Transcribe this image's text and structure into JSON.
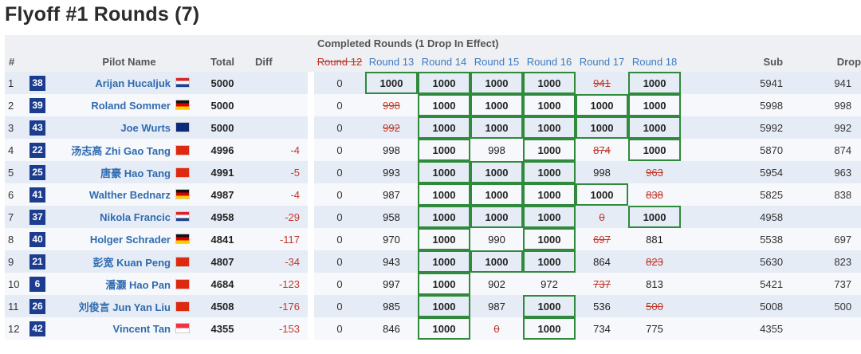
{
  "title": "Flyoff #1 Rounds (7)",
  "header": {
    "group_label": "Completed Rounds (1 Drop In Effect)",
    "hash": "#",
    "pilot_name": "Pilot Name",
    "total": "Total",
    "diff": "Diff",
    "rounds": [
      "Round 12",
      "Round 13",
      "Round 14",
      "Round 15",
      "Round 16",
      "Round 17",
      "Round 18"
    ],
    "sub": "Sub",
    "drop": "Drop"
  },
  "colors": {
    "id_badge": "#1c3d8f",
    "name": "#2f6bb0",
    "negative": "#c0392b",
    "box": "#2f8a3c",
    "round_head": "#3a7cc2"
  },
  "rows": [
    {
      "rank": "1",
      "id": "38",
      "name": "Arijan Hucaljuk",
      "flag": "hr",
      "total": "5000",
      "diff": "",
      "r12": "0",
      "scores": [
        "1000",
        "1000",
        "1000",
        "1000",
        "941",
        "1000"
      ],
      "crossed": [
        false,
        false,
        false,
        false,
        true,
        false
      ],
      "bold": [
        true,
        true,
        true,
        true,
        false,
        true
      ],
      "boxed": [
        true,
        true,
        true,
        true,
        false,
        true
      ],
      "sub": "5941",
      "drop": "941"
    },
    {
      "rank": "2",
      "id": "39",
      "name": "Roland Sommer",
      "flag": "de",
      "total": "5000",
      "diff": "",
      "r12": "0",
      "scores": [
        "998",
        "1000",
        "1000",
        "1000",
        "1000",
        "1000"
      ],
      "crossed": [
        true,
        false,
        false,
        false,
        false,
        false
      ],
      "bold": [
        false,
        true,
        true,
        true,
        true,
        true
      ],
      "boxed": [
        false,
        true,
        true,
        true,
        true,
        true
      ],
      "sub": "5998",
      "drop": "998"
    },
    {
      "rank": "3",
      "id": "43",
      "name": "Joe Wurts",
      "flag": "nz",
      "total": "5000",
      "diff": "",
      "r12": "0",
      "scores": [
        "992",
        "1000",
        "1000",
        "1000",
        "1000",
        "1000"
      ],
      "crossed": [
        true,
        false,
        false,
        false,
        false,
        false
      ],
      "bold": [
        false,
        true,
        true,
        true,
        true,
        true
      ],
      "boxed": [
        false,
        true,
        true,
        true,
        true,
        true
      ],
      "sub": "5992",
      "drop": "992"
    },
    {
      "rank": "4",
      "id": "22",
      "name": "汤志高 Zhi Gao Tang",
      "flag": "cn",
      "total": "4996",
      "diff": "-4",
      "r12": "0",
      "scores": [
        "998",
        "1000",
        "998",
        "1000",
        "874",
        "1000"
      ],
      "crossed": [
        false,
        false,
        false,
        false,
        true,
        false
      ],
      "bold": [
        false,
        true,
        false,
        true,
        false,
        true
      ],
      "boxed": [
        false,
        true,
        false,
        true,
        false,
        true
      ],
      "sub": "5870",
      "drop": "874"
    },
    {
      "rank": "5",
      "id": "25",
      "name": "唐豪 Hao Tang",
      "flag": "cn",
      "total": "4991",
      "diff": "-5",
      "r12": "0",
      "scores": [
        "993",
        "1000",
        "1000",
        "1000",
        "998",
        "963"
      ],
      "crossed": [
        false,
        false,
        false,
        false,
        false,
        true
      ],
      "bold": [
        false,
        true,
        true,
        true,
        false,
        false
      ],
      "boxed": [
        false,
        true,
        true,
        true,
        false,
        false
      ],
      "sub": "5954",
      "drop": "963"
    },
    {
      "rank": "6",
      "id": "41",
      "name": "Walther Bednarz",
      "flag": "de",
      "total": "4987",
      "diff": "-4",
      "r12": "0",
      "scores": [
        "987",
        "1000",
        "1000",
        "1000",
        "1000",
        "838"
      ],
      "crossed": [
        false,
        false,
        false,
        false,
        false,
        true
      ],
      "bold": [
        false,
        true,
        true,
        true,
        true,
        false
      ],
      "boxed": [
        false,
        true,
        true,
        true,
        true,
        false
      ],
      "sub": "5825",
      "drop": "838"
    },
    {
      "rank": "7",
      "id": "37",
      "name": "Nikola Francic",
      "flag": "hr",
      "total": "4958",
      "diff": "-29",
      "r12": "0",
      "scores": [
        "958",
        "1000",
        "1000",
        "1000",
        "0",
        "1000"
      ],
      "crossed": [
        false,
        false,
        false,
        false,
        true,
        false
      ],
      "bold": [
        false,
        true,
        true,
        true,
        false,
        true
      ],
      "boxed": [
        false,
        true,
        true,
        true,
        false,
        true
      ],
      "sub": "4958",
      "drop": ""
    },
    {
      "rank": "8",
      "id": "40",
      "name": "Holger Schrader",
      "flag": "de",
      "total": "4841",
      "diff": "-117",
      "r12": "0",
      "scores": [
        "970",
        "1000",
        "990",
        "1000",
        "697",
        "881"
      ],
      "crossed": [
        false,
        false,
        false,
        false,
        true,
        false
      ],
      "bold": [
        false,
        true,
        false,
        true,
        false,
        false
      ],
      "boxed": [
        false,
        true,
        false,
        true,
        false,
        false
      ],
      "sub": "5538",
      "drop": "697"
    },
    {
      "rank": "9",
      "id": "21",
      "name": "彭宽 Kuan Peng",
      "flag": "cn",
      "total": "4807",
      "diff": "-34",
      "r12": "0",
      "scores": [
        "943",
        "1000",
        "1000",
        "1000",
        "864",
        "823"
      ],
      "crossed": [
        false,
        false,
        false,
        false,
        false,
        true
      ],
      "bold": [
        false,
        true,
        true,
        true,
        false,
        false
      ],
      "boxed": [
        false,
        true,
        true,
        true,
        false,
        false
      ],
      "sub": "5630",
      "drop": "823"
    },
    {
      "rank": "10",
      "id": "6",
      "name": "潘灏 Hao Pan",
      "flag": "cn",
      "total": "4684",
      "diff": "-123",
      "r12": "0",
      "scores": [
        "997",
        "1000",
        "902",
        "972",
        "737",
        "813"
      ],
      "crossed": [
        false,
        false,
        false,
        false,
        true,
        false
      ],
      "bold": [
        false,
        true,
        false,
        false,
        false,
        false
      ],
      "boxed": [
        false,
        true,
        false,
        false,
        false,
        false
      ],
      "sub": "5421",
      "drop": "737"
    },
    {
      "rank": "11",
      "id": "26",
      "name": "刘俊言 Jun Yan Liu",
      "flag": "cn",
      "total": "4508",
      "diff": "-176",
      "r12": "0",
      "scores": [
        "985",
        "1000",
        "987",
        "1000",
        "536",
        "500"
      ],
      "crossed": [
        false,
        false,
        false,
        false,
        false,
        true
      ],
      "bold": [
        false,
        true,
        false,
        true,
        false,
        false
      ],
      "boxed": [
        false,
        true,
        false,
        true,
        false,
        false
      ],
      "sub": "5008",
      "drop": "500"
    },
    {
      "rank": "12",
      "id": "42",
      "name": "Vincent Tan",
      "flag": "sg",
      "total": "4355",
      "diff": "-153",
      "r12": "0",
      "scores": [
        "846",
        "1000",
        "0",
        "1000",
        "734",
        "775"
      ],
      "crossed": [
        false,
        false,
        true,
        false,
        false,
        false
      ],
      "bold": [
        false,
        true,
        false,
        true,
        false,
        false
      ],
      "boxed": [
        false,
        true,
        false,
        true,
        false,
        false
      ],
      "sub": "4355",
      "drop": ""
    }
  ]
}
